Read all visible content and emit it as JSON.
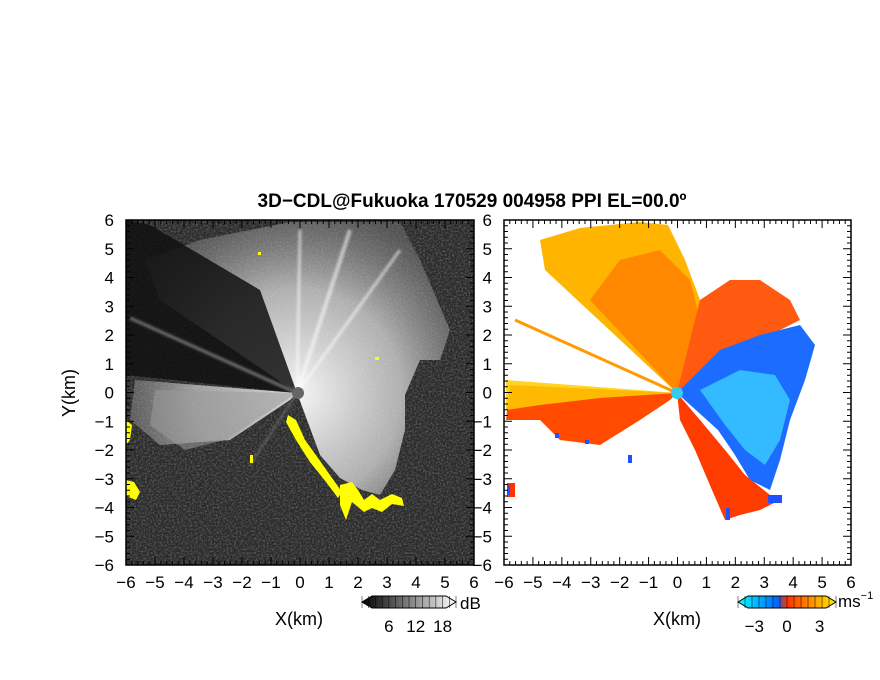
{
  "title": "3D−CDL@Fukuoka 170529 004958 PPI EL=00.0º",
  "chart_data": [
    {
      "type": "heatmap",
      "panel": "snr",
      "xlabel": "X(km)",
      "ylabel": "Y(km)",
      "xlim": [
        -6,
        6
      ],
      "ylim": [
        -6,
        6
      ],
      "x_ticks": [
        "−6",
        "−5",
        "−4",
        "−3",
        "−2",
        "−1",
        "0",
        "1",
        "2",
        "3",
        "4",
        "5",
        "6"
      ],
      "y_ticks": [
        "6",
        "5",
        "4",
        "3",
        "2",
        "1",
        "0",
        "−1",
        "−2",
        "−3",
        "−4",
        "−5",
        "−6"
      ],
      "colorbar": {
        "unit": "dB",
        "ticks": [
          "6",
          "12",
          "18"
        ],
        "range": [
          0,
          21
        ],
        "colors": [
          "#000000",
          "#ffffff"
        ]
      },
      "highlight_color": "#ffff00",
      "background_color": "#2a2a2a"
    },
    {
      "type": "heatmap",
      "panel": "doppler_velocity",
      "xlabel": "X(km)",
      "ylabel": "",
      "xlim": [
        -6,
        6
      ],
      "ylim": [
        -6,
        6
      ],
      "x_ticks": [
        "−6",
        "−5",
        "−4",
        "−3",
        "−2",
        "−1",
        "0",
        "1",
        "2",
        "3",
        "4",
        "5",
        "6"
      ],
      "y_ticks": [
        "6",
        "5",
        "4",
        "3",
        "2",
        "1",
        "0",
        "−1",
        "−2",
        "−3",
        "−4",
        "−5",
        "−6"
      ],
      "colorbar": {
        "unit": "ms",
        "unit_exponent": "−1",
        "ticks": [
          "−3",
          "0",
          "3"
        ],
        "range": [
          -4.5,
          4.5
        ],
        "colors": [
          "#00ffff",
          "#0066ff",
          "#ff3300",
          "#ffee00"
        ]
      },
      "background_color": "#ffffff"
    }
  ]
}
